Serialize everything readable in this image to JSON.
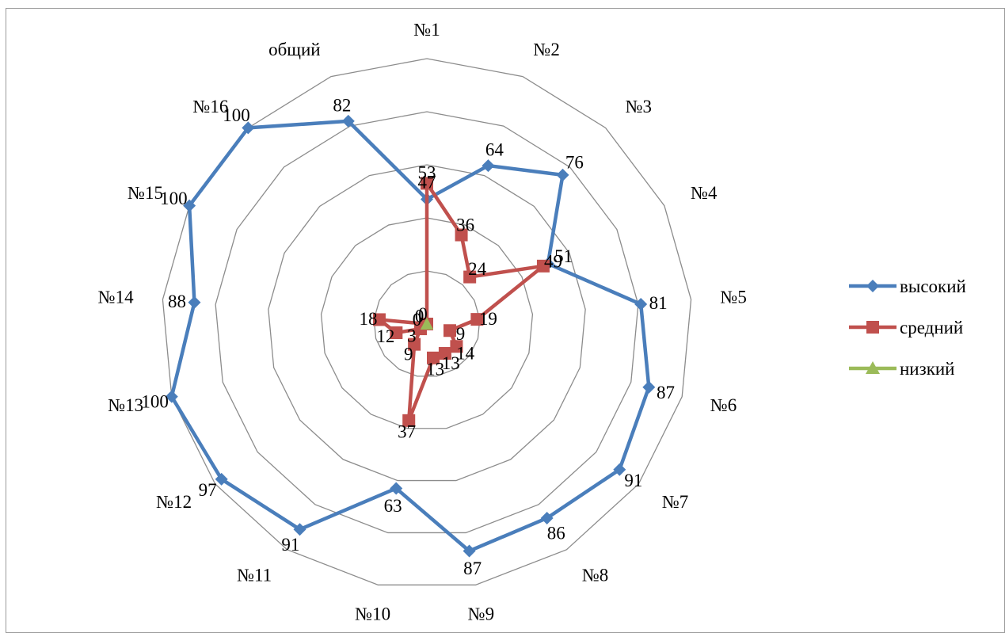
{
  "chart_data": {
    "type": "radar",
    "title": "",
    "categories": [
      "№1",
      "№2",
      "№3",
      "№4",
      "№5",
      "№6",
      "№7",
      "№8",
      "№9",
      "№10",
      "№11",
      "№12",
      "№13",
      "№14",
      "№15",
      "№16",
      "общий"
    ],
    "rlim": [
      0,
      100
    ],
    "grid": true,
    "legend": "right",
    "series": [
      {
        "name": "высокий",
        "color": "#4a7ebb",
        "marker": "diamond",
        "values": [
          47,
          64,
          76,
          51,
          81,
          87,
          91,
          86,
          87,
          63,
          91,
          97,
          100,
          88,
          100,
          100,
          82
        ]
      },
      {
        "name": "средний",
        "color": "#c0504d",
        "marker": "square",
        "values": [
          53,
          36,
          24,
          49,
          19,
          9,
          14,
          13,
          13,
          37,
          9,
          3,
          12,
          18,
          0,
          0,
          0
        ]
      },
      {
        "name": "низкий",
        "color": "#9bbb59",
        "marker": "triangle",
        "values": [
          0,
          0,
          0,
          0,
          0,
          0,
          0,
          0,
          0,
          0,
          0,
          0,
          0,
          0,
          0,
          0,
          0
        ]
      }
    ]
  }
}
